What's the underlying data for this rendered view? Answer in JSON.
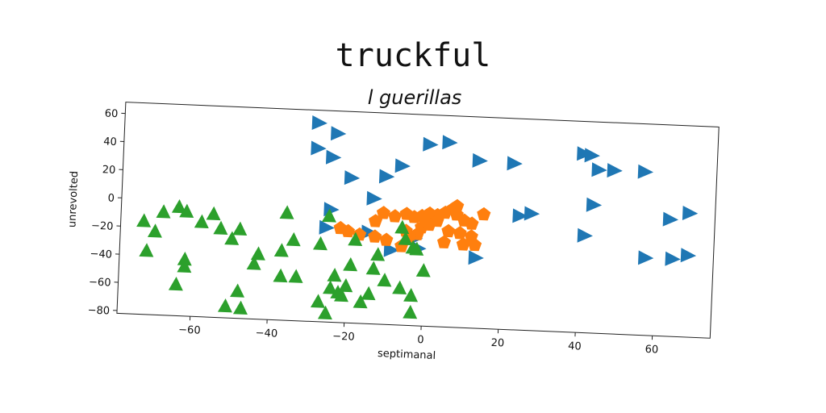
{
  "chart_data": {
    "type": "scatter",
    "title": "truckful",
    "subtitle": "l guerillas",
    "xlabel": "septimanal",
    "ylabel": "unrevolted",
    "xlim": [
      -79,
      75
    ],
    "ylim": [
      -82,
      68
    ],
    "xticks": [
      -60,
      -40,
      -20,
      0,
      20,
      40,
      60
    ],
    "yticks": [
      60,
      40,
      20,
      0,
      -20,
      -40,
      -60,
      -80
    ],
    "xtick_labels": [
      "−60",
      "−40",
      "−20",
      "0",
      "20",
      "40",
      "60"
    ],
    "ytick_labels": [
      "60",
      "40",
      "20",
      "0",
      "−20",
      "−40",
      "−60",
      "−80"
    ],
    "grid": false,
    "series": [
      {
        "marker": "triangle-right",
        "color": "#1f77b4",
        "points": [
          [
            -29,
            59
          ],
          [
            -24,
            52
          ],
          [
            -29,
            41
          ],
          [
            -25,
            35
          ],
          [
            -20,
            21
          ],
          [
            -11,
            23
          ],
          [
            -14,
            7
          ],
          [
            -7,
            31
          ],
          [
            0,
            47
          ],
          [
            5,
            49
          ],
          [
            13,
            37
          ],
          [
            22,
            36
          ],
          [
            40,
            45
          ],
          [
            42,
            44
          ],
          [
            44,
            34
          ],
          [
            48,
            34
          ],
          [
            56,
            34
          ],
          [
            43,
            9
          ],
          [
            24,
            -1
          ],
          [
            27,
            1
          ],
          [
            63,
            1
          ],
          [
            68,
            6
          ],
          [
            41,
            -13
          ],
          [
            57,
            -27
          ],
          [
            64,
            -27
          ],
          [
            68,
            -24
          ],
          [
            13,
            -32
          ],
          [
            -25,
            -2
          ],
          [
            -26,
            -15
          ],
          [
            -15,
            -17
          ],
          [
            -9,
            -29
          ],
          [
            -3,
            -20
          ],
          [
            -2,
            -27
          ]
        ]
      },
      {
        "marker": "pentagon",
        "color": "#ff7f0e",
        "points": [
          [
            -22,
            -15
          ],
          [
            -20,
            -17
          ],
          [
            -17,
            -19
          ],
          [
            -13,
            -9
          ],
          [
            -11,
            -3
          ],
          [
            -8,
            -5
          ],
          [
            -5,
            -3
          ],
          [
            -3,
            -5
          ],
          [
            -1,
            -4
          ],
          [
            1,
            -2
          ],
          [
            3,
            -3
          ],
          [
            5,
            -1
          ],
          [
            7,
            2
          ],
          [
            8,
            4
          ],
          [
            10,
            -6
          ],
          [
            12,
            -8
          ],
          [
            15,
            -1
          ],
          [
            -5,
            -15
          ],
          [
            -1,
            -12
          ],
          [
            1,
            -10
          ],
          [
            3,
            -7
          ],
          [
            6,
            -14
          ],
          [
            9,
            -15
          ],
          [
            12,
            -17
          ],
          [
            13,
            -23
          ],
          [
            10,
            -23
          ],
          [
            5,
            -22
          ],
          [
            -2,
            -17
          ],
          [
            -4,
            -19
          ],
          [
            -10,
            -22
          ],
          [
            -13,
            -20
          ],
          [
            -6,
            -26
          ],
          [
            8,
            -2
          ],
          [
            0,
            -8
          ]
        ]
      },
      {
        "marker": "triangle-up",
        "color": "#2ca02c",
        "points": [
          [
            -73,
            -16
          ],
          [
            -70,
            -23
          ],
          [
            -68,
            -9
          ],
          [
            -64,
            -5
          ],
          [
            -62,
            -8
          ],
          [
            -58,
            -15
          ],
          [
            -55,
            -9
          ],
          [
            -53,
            -19
          ],
          [
            -50,
            -26
          ],
          [
            -48,
            -19
          ],
          [
            -72,
            -37
          ],
          [
            -62,
            -42
          ],
          [
            -62,
            -47
          ],
          [
            -64,
            -60
          ],
          [
            -48,
            -63
          ],
          [
            -51,
            -74
          ],
          [
            -47,
            -75
          ],
          [
            -44,
            -43
          ],
          [
            -43,
            -36
          ],
          [
            -37,
            -33
          ],
          [
            -37,
            -51
          ],
          [
            -33,
            -51
          ],
          [
            -34,
            -25
          ],
          [
            -36,
            -6
          ],
          [
            -27,
            -27
          ],
          [
            -23,
            -49
          ],
          [
            -22,
            -61
          ],
          [
            -21,
            -63
          ],
          [
            -20,
            -56
          ],
          [
            -19,
            -41
          ],
          [
            -16,
            -67
          ],
          [
            -14,
            -61
          ],
          [
            -10,
            -51
          ],
          [
            -12,
            -33
          ],
          [
            -13,
            -43
          ],
          [
            -5,
            -21
          ],
          [
            -6,
            -13
          ],
          [
            -2,
            -28
          ],
          [
            -3,
            -27
          ],
          [
            -6,
            -56
          ],
          [
            -3,
            -61
          ],
          [
            -3,
            -73
          ],
          [
            0,
            -43
          ],
          [
            -25,
            -76
          ],
          [
            -27,
            -68
          ],
          [
            -24,
            -58
          ],
          [
            -18,
            -23
          ],
          [
            -25,
            -7
          ]
        ]
      }
    ]
  }
}
